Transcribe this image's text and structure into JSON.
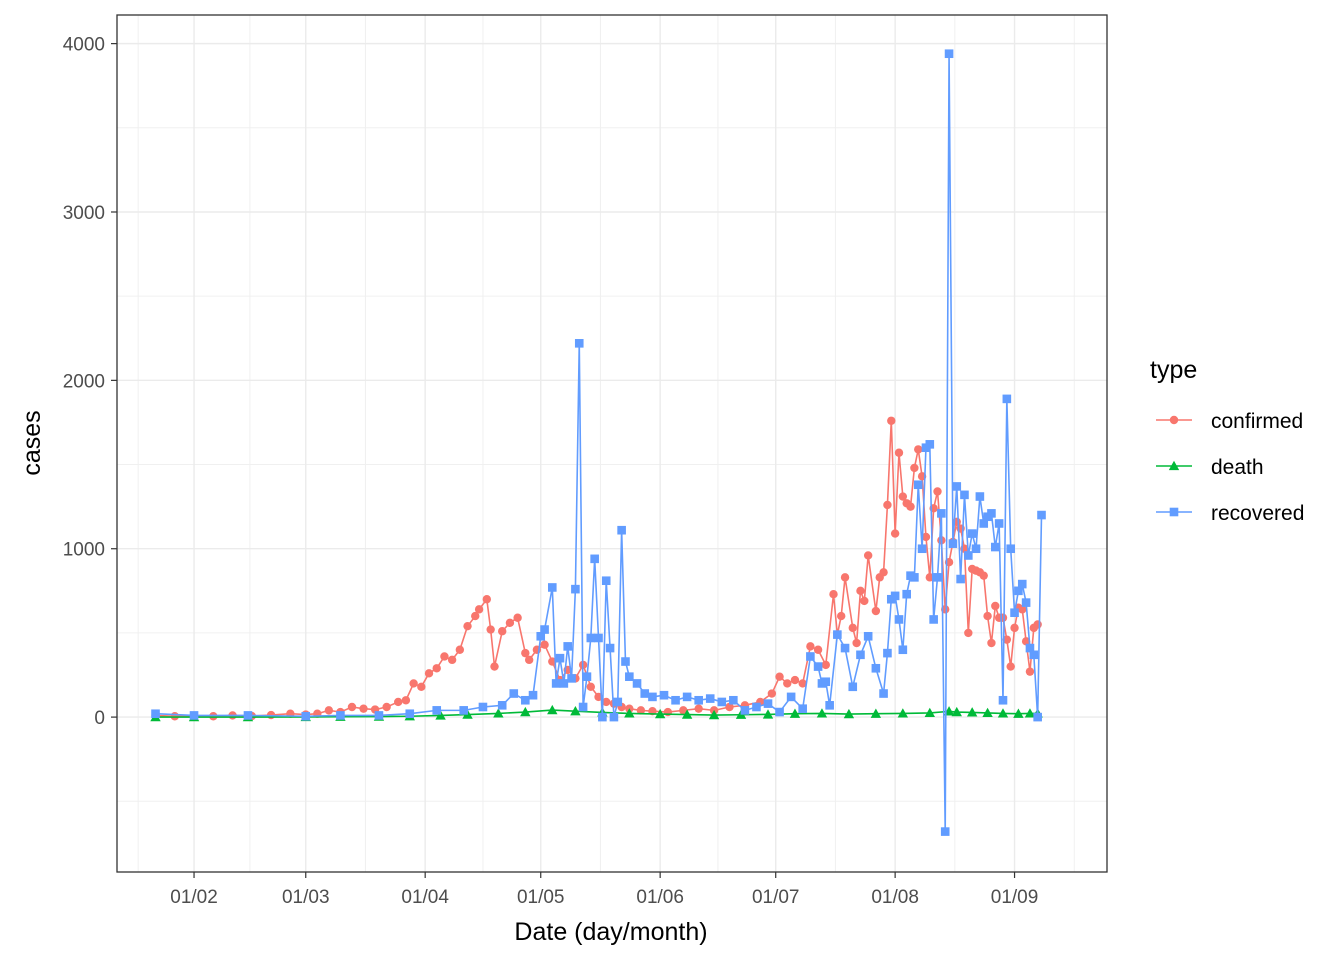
{
  "chart_data": {
    "type": "line",
    "title": "",
    "xlabel": "Date (day/month)",
    "ylabel": "cases",
    "x_tick_labels": [
      "01/02",
      "01/03",
      "01/04",
      "01/05",
      "01/06",
      "01/07",
      "01/08",
      "01/09"
    ],
    "x_tick_dates": [
      "2020-02-01",
      "2020-03-01",
      "2020-04-01",
      "2020-05-01",
      "2020-06-01",
      "2020-07-01",
      "2020-08-01",
      "2020-09-01"
    ],
    "xlim": [
      "2020-01-12",
      "2020-09-25"
    ],
    "y_tick_labels": [
      "0",
      "1000",
      "2000",
      "3000",
      "4000"
    ],
    "y_ticks": [
      0,
      1000,
      2000,
      3000,
      4000
    ],
    "ylim": [
      -920,
      4170
    ],
    "grid": true,
    "legend": {
      "title": "type",
      "position": "right"
    },
    "series": [
      {
        "name": "confirmed",
        "color": "#F8766D",
        "marker": "circle",
        "points": [
          [
            "2020-01-22",
            10
          ],
          [
            "2020-01-27",
            5
          ],
          [
            "2020-02-01",
            8
          ],
          [
            "2020-02-06",
            5
          ],
          [
            "2020-02-11",
            10
          ],
          [
            "2020-02-16",
            6
          ],
          [
            "2020-02-21",
            12
          ],
          [
            "2020-02-26",
            20
          ],
          [
            "2020-03-01",
            15
          ],
          [
            "2020-03-04",
            20
          ],
          [
            "2020-03-07",
            40
          ],
          [
            "2020-03-10",
            30
          ],
          [
            "2020-03-13",
            60
          ],
          [
            "2020-03-16",
            50
          ],
          [
            "2020-03-19",
            45
          ],
          [
            "2020-03-22",
            60
          ],
          [
            "2020-03-25",
            90
          ],
          [
            "2020-03-27",
            100
          ],
          [
            "2020-03-29",
            200
          ],
          [
            "2020-03-31",
            180
          ],
          [
            "2020-04-02",
            260
          ],
          [
            "2020-04-04",
            290
          ],
          [
            "2020-04-06",
            360
          ],
          [
            "2020-04-08",
            340
          ],
          [
            "2020-04-10",
            400
          ],
          [
            "2020-04-12",
            540
          ],
          [
            "2020-04-14",
            600
          ],
          [
            "2020-04-15",
            640
          ],
          [
            "2020-04-17",
            700
          ],
          [
            "2020-04-18",
            520
          ],
          [
            "2020-04-19",
            300
          ],
          [
            "2020-04-21",
            510
          ],
          [
            "2020-04-23",
            560
          ],
          [
            "2020-04-25",
            590
          ],
          [
            "2020-04-27",
            380
          ],
          [
            "2020-04-28",
            340
          ],
          [
            "2020-04-30",
            400
          ],
          [
            "2020-05-02",
            430
          ],
          [
            "2020-05-04",
            330
          ],
          [
            "2020-05-06",
            220
          ],
          [
            "2020-05-08",
            280
          ],
          [
            "2020-05-10",
            230
          ],
          [
            "2020-05-12",
            310
          ],
          [
            "2020-05-14",
            180
          ],
          [
            "2020-05-16",
            120
          ],
          [
            "2020-05-18",
            90
          ],
          [
            "2020-05-20",
            80
          ],
          [
            "2020-05-22",
            60
          ],
          [
            "2020-05-24",
            50
          ],
          [
            "2020-05-27",
            40
          ],
          [
            "2020-05-30",
            35
          ],
          [
            "2020-06-03",
            30
          ],
          [
            "2020-06-07",
            40
          ],
          [
            "2020-06-11",
            50
          ],
          [
            "2020-06-15",
            40
          ],
          [
            "2020-06-19",
            60
          ],
          [
            "2020-06-23",
            70
          ],
          [
            "2020-06-27",
            90
          ],
          [
            "2020-06-30",
            140
          ],
          [
            "2020-07-02",
            240
          ],
          [
            "2020-07-04",
            200
          ],
          [
            "2020-07-06",
            220
          ],
          [
            "2020-07-08",
            200
          ],
          [
            "2020-07-10",
            420
          ],
          [
            "2020-07-12",
            400
          ],
          [
            "2020-07-14",
            310
          ],
          [
            "2020-07-16",
            730
          ],
          [
            "2020-07-17",
            490
          ],
          [
            "2020-07-18",
            600
          ],
          [
            "2020-07-19",
            830
          ],
          [
            "2020-07-21",
            530
          ],
          [
            "2020-07-22",
            440
          ],
          [
            "2020-07-23",
            750
          ],
          [
            "2020-07-24",
            690
          ],
          [
            "2020-07-25",
            960
          ],
          [
            "2020-07-27",
            630
          ],
          [
            "2020-07-28",
            830
          ],
          [
            "2020-07-29",
            860
          ],
          [
            "2020-07-30",
            1260
          ],
          [
            "2020-07-31",
            1760
          ],
          [
            "2020-08-01",
            1090
          ],
          [
            "2020-08-02",
            1570
          ],
          [
            "2020-08-03",
            1310
          ],
          [
            "2020-08-04",
            1270
          ],
          [
            "2020-08-05",
            1250
          ],
          [
            "2020-08-06",
            1480
          ],
          [
            "2020-08-07",
            1590
          ],
          [
            "2020-08-08",
            1430
          ],
          [
            "2020-08-09",
            1070
          ],
          [
            "2020-08-10",
            830
          ],
          [
            "2020-08-11",
            1240
          ],
          [
            "2020-08-12",
            1340
          ],
          [
            "2020-08-13",
            1050
          ],
          [
            "2020-08-14",
            640
          ],
          [
            "2020-08-15",
            920
          ],
          [
            "2020-08-16",
            1040
          ],
          [
            "2020-08-17",
            1160
          ],
          [
            "2020-08-18",
            1120
          ],
          [
            "2020-08-19",
            1000
          ],
          [
            "2020-08-20",
            500
          ],
          [
            "2020-08-21",
            880
          ],
          [
            "2020-08-22",
            870
          ],
          [
            "2020-08-23",
            860
          ],
          [
            "2020-08-24",
            840
          ],
          [
            "2020-08-25",
            600
          ],
          [
            "2020-08-26",
            440
          ],
          [
            "2020-08-27",
            660
          ],
          [
            "2020-08-28",
            590
          ],
          [
            "2020-08-29",
            590
          ],
          [
            "2020-08-30",
            460
          ],
          [
            "2020-08-31",
            300
          ],
          [
            "2020-09-01",
            530
          ],
          [
            "2020-09-02",
            650
          ],
          [
            "2020-09-03",
            640
          ],
          [
            "2020-09-04",
            450
          ],
          [
            "2020-09-05",
            270
          ],
          [
            "2020-09-06",
            530
          ],
          [
            "2020-09-07",
            550
          ]
        ]
      },
      {
        "name": "death",
        "color": "#00BA38",
        "marker": "triangle",
        "points": [
          [
            "2020-01-22",
            0
          ],
          [
            "2020-02-01",
            0
          ],
          [
            "2020-02-15",
            0
          ],
          [
            "2020-03-01",
            1
          ],
          [
            "2020-03-10",
            2
          ],
          [
            "2020-03-20",
            3
          ],
          [
            "2020-03-28",
            5
          ],
          [
            "2020-04-05",
            10
          ],
          [
            "2020-04-12",
            15
          ],
          [
            "2020-04-20",
            22
          ],
          [
            "2020-04-27",
            30
          ],
          [
            "2020-05-04",
            42
          ],
          [
            "2020-05-10",
            35
          ],
          [
            "2020-05-17",
            28
          ],
          [
            "2020-05-24",
            22
          ],
          [
            "2020-06-01",
            18
          ],
          [
            "2020-06-08",
            15
          ],
          [
            "2020-06-15",
            12
          ],
          [
            "2020-06-22",
            14
          ],
          [
            "2020-06-29",
            16
          ],
          [
            "2020-07-06",
            20
          ],
          [
            "2020-07-13",
            22
          ],
          [
            "2020-07-20",
            18
          ],
          [
            "2020-07-27",
            20
          ],
          [
            "2020-08-03",
            22
          ],
          [
            "2020-08-10",
            25
          ],
          [
            "2020-08-15",
            34
          ],
          [
            "2020-08-17",
            30
          ],
          [
            "2020-08-21",
            28
          ],
          [
            "2020-08-25",
            25
          ],
          [
            "2020-08-29",
            22
          ],
          [
            "2020-09-02",
            20
          ],
          [
            "2020-09-05",
            22
          ],
          [
            "2020-09-07",
            22
          ]
        ]
      },
      {
        "name": "recovered",
        "color": "#619CFF",
        "marker": "square",
        "points": [
          [
            "2020-01-22",
            20
          ],
          [
            "2020-02-01",
            10
          ],
          [
            "2020-02-15",
            10
          ],
          [
            "2020-03-01",
            5
          ],
          [
            "2020-03-10",
            10
          ],
          [
            "2020-03-20",
            10
          ],
          [
            "2020-03-28",
            20
          ],
          [
            "2020-04-04",
            40
          ],
          [
            "2020-04-11",
            40
          ],
          [
            "2020-04-16",
            60
          ],
          [
            "2020-04-21",
            70
          ],
          [
            "2020-04-24",
            140
          ],
          [
            "2020-04-27",
            100
          ],
          [
            "2020-04-29",
            130
          ],
          [
            "2020-05-01",
            480
          ],
          [
            "2020-05-02",
            520
          ],
          [
            "2020-05-04",
            770
          ],
          [
            "2020-05-05",
            200
          ],
          [
            "2020-05-06",
            350
          ],
          [
            "2020-05-07",
            200
          ],
          [
            "2020-05-08",
            420
          ],
          [
            "2020-05-09",
            230
          ],
          [
            "2020-05-10",
            760
          ],
          [
            "2020-05-11",
            2220
          ],
          [
            "2020-05-12",
            60
          ],
          [
            "2020-05-13",
            240
          ],
          [
            "2020-05-14",
            470
          ],
          [
            "2020-05-15",
            940
          ],
          [
            "2020-05-16",
            470
          ],
          [
            "2020-05-17",
            0
          ],
          [
            "2020-05-18",
            810
          ],
          [
            "2020-05-19",
            410
          ],
          [
            "2020-05-20",
            0
          ],
          [
            "2020-05-21",
            90
          ],
          [
            "2020-05-22",
            1110
          ],
          [
            "2020-05-23",
            330
          ],
          [
            "2020-05-24",
            240
          ],
          [
            "2020-05-26",
            200
          ],
          [
            "2020-05-28",
            140
          ],
          [
            "2020-05-30",
            120
          ],
          [
            "2020-06-02",
            130
          ],
          [
            "2020-06-05",
            100
          ],
          [
            "2020-06-08",
            120
          ],
          [
            "2020-06-11",
            100
          ],
          [
            "2020-06-14",
            110
          ],
          [
            "2020-06-17",
            90
          ],
          [
            "2020-06-20",
            100
          ],
          [
            "2020-06-23",
            40
          ],
          [
            "2020-06-26",
            60
          ],
          [
            "2020-06-29",
            80
          ],
          [
            "2020-07-02",
            30
          ],
          [
            "2020-07-05",
            120
          ],
          [
            "2020-07-08",
            50
          ],
          [
            "2020-07-10",
            360
          ],
          [
            "2020-07-12",
            300
          ],
          [
            "2020-07-13",
            200
          ],
          [
            "2020-07-14",
            210
          ],
          [
            "2020-07-15",
            70
          ],
          [
            "2020-07-17",
            490
          ],
          [
            "2020-07-19",
            410
          ],
          [
            "2020-07-21",
            180
          ],
          [
            "2020-07-23",
            370
          ],
          [
            "2020-07-25",
            480
          ],
          [
            "2020-07-27",
            290
          ],
          [
            "2020-07-29",
            140
          ],
          [
            "2020-07-30",
            380
          ],
          [
            "2020-07-31",
            700
          ],
          [
            "2020-08-01",
            720
          ],
          [
            "2020-08-02",
            580
          ],
          [
            "2020-08-03",
            400
          ],
          [
            "2020-08-04",
            730
          ],
          [
            "2020-08-05",
            840
          ],
          [
            "2020-08-06",
            830
          ],
          [
            "2020-08-07",
            1380
          ],
          [
            "2020-08-08",
            1000
          ],
          [
            "2020-08-09",
            1600
          ],
          [
            "2020-08-10",
            1620
          ],
          [
            "2020-08-11",
            580
          ],
          [
            "2020-08-12",
            830
          ],
          [
            "2020-08-13",
            1210
          ],
          [
            "2020-08-14",
            -680
          ],
          [
            "2020-08-15",
            3940
          ],
          [
            "2020-08-16",
            1030
          ],
          [
            "2020-08-17",
            1370
          ],
          [
            "2020-08-18",
            820
          ],
          [
            "2020-08-19",
            1320
          ],
          [
            "2020-08-20",
            960
          ],
          [
            "2020-08-21",
            1090
          ],
          [
            "2020-08-22",
            1000
          ],
          [
            "2020-08-23",
            1310
          ],
          [
            "2020-08-24",
            1150
          ],
          [
            "2020-08-25",
            1190
          ],
          [
            "2020-08-26",
            1210
          ],
          [
            "2020-08-27",
            1010
          ],
          [
            "2020-08-28",
            1150
          ],
          [
            "2020-08-29",
            100
          ],
          [
            "2020-08-30",
            1890
          ],
          [
            "2020-08-31",
            1000
          ],
          [
            "2020-09-01",
            620
          ],
          [
            "2020-09-02",
            750
          ],
          [
            "2020-09-03",
            790
          ],
          [
            "2020-09-04",
            680
          ],
          [
            "2020-09-05",
            410
          ],
          [
            "2020-09-06",
            370
          ],
          [
            "2020-09-07",
            0
          ],
          [
            "2020-09-08",
            1200
          ]
        ]
      }
    ]
  }
}
